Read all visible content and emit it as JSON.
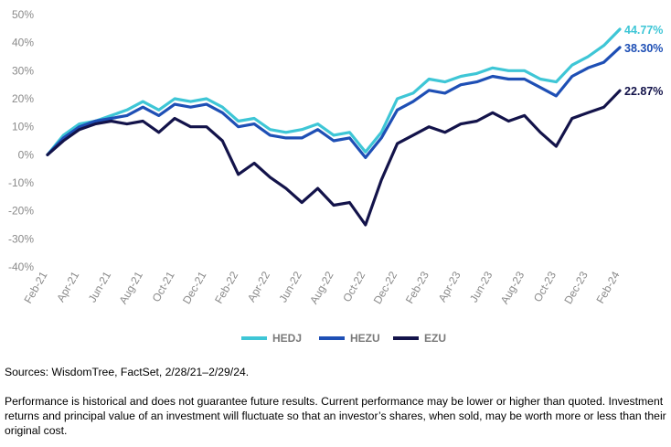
{
  "chart_data": {
    "type": "line",
    "title": "",
    "xlabel": "",
    "ylabel": "",
    "ylim": [
      -40,
      50
    ],
    "y_ticks": [
      "50%",
      "40%",
      "30%",
      "20%",
      "10%",
      "0%",
      "-10%",
      "-20%",
      "-30%",
      "-40%"
    ],
    "x": [
      "Feb-21",
      "Mar-21",
      "Apr-21",
      "May-21",
      "Jun-21",
      "Jul-21",
      "Aug-21",
      "Sep-21",
      "Oct-21",
      "Nov-21",
      "Dec-21",
      "Jan-22",
      "Feb-22",
      "Mar-22",
      "Apr-22",
      "May-22",
      "Jun-22",
      "Jul-22",
      "Aug-22",
      "Sep-22",
      "Oct-22",
      "Nov-22",
      "Dec-22",
      "Jan-23",
      "Feb-23",
      "Mar-23",
      "Apr-23",
      "May-23",
      "Jun-23",
      "Jul-23",
      "Aug-23",
      "Sep-23",
      "Oct-23",
      "Nov-23",
      "Dec-23",
      "Jan-24",
      "Feb-24"
    ],
    "x_tick_labels": [
      "Feb-21",
      "Apr-21",
      "Jun-21",
      "Aug-21",
      "Oct-21",
      "Dec-21",
      "Feb-22",
      "Apr-22",
      "Jun-22",
      "Aug-22",
      "Oct-22",
      "Dec-22",
      "Feb-23",
      "Apr-23",
      "Jun-23",
      "Aug-23",
      "Oct-23",
      "Dec-23",
      "Feb-24"
    ],
    "grid": false,
    "legend_position": "bottom-center",
    "series": [
      {
        "name": "HEDJ",
        "color": "#3ec6d6",
        "end_label": "44.77%",
        "values": [
          0,
          7,
          11,
          12,
          14,
          16,
          19,
          16,
          20,
          19,
          20,
          17,
          12,
          13,
          9,
          8,
          9,
          11,
          7,
          8,
          1,
          8,
          20,
          22,
          27,
          26,
          28,
          29,
          31,
          30,
          30,
          27,
          26,
          32,
          35,
          39,
          44.77
        ]
      },
      {
        "name": "HEZU",
        "color": "#1e4fb5",
        "end_label": "38.30%",
        "values": [
          0,
          6,
          10,
          12,
          13,
          14,
          17,
          14,
          18,
          17,
          18,
          15,
          10,
          11,
          7,
          6,
          6,
          9,
          5,
          6,
          -1,
          6,
          16,
          19,
          23,
          22,
          25,
          26,
          28,
          27,
          27,
          24,
          21,
          28,
          31,
          33,
          38.3
        ]
      },
      {
        "name": "EZU",
        "color": "#13134a",
        "end_label": "22.87%",
        "values": [
          0,
          5,
          9,
          11,
          12,
          11,
          12,
          8,
          13,
          10,
          10,
          5,
          -7,
          -3,
          -8,
          -12,
          -17,
          -12,
          -18,
          -17,
          -25,
          -9,
          4,
          7,
          10,
          8,
          11,
          12,
          15,
          12,
          14,
          8,
          3,
          13,
          15,
          17,
          22.87
        ]
      }
    ]
  },
  "footer": {
    "sources": "Sources: WisdomTree, FactSet, 2/28/21–2/29/24.",
    "disclaimer": "Performance is historical and does not guarantee future results. Current performance may be lower or higher than quoted. Investment returns and principal value of an investment will fluctuate so that an investor’s shares, when sold, may be worth more or less than their original cost."
  }
}
